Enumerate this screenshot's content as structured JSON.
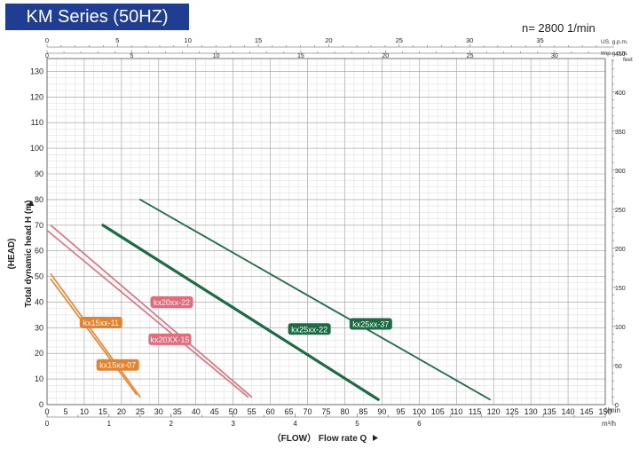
{
  "header": {
    "title": "KM Series (50HZ)",
    "speed": "n= 2800  1/min"
  },
  "colors": {
    "title_bg": "#1f3d93",
    "orange": "#e8822a",
    "pink": "#e26b7c",
    "green": "#1b6b43",
    "grid": "#bdbdbd"
  },
  "chart_data": {
    "type": "line",
    "title": "",
    "xlabel": "（FLOW）  Flow rate Q",
    "ylabel": "Total dynamic head H (m)",
    "ylabel_group": "(HEAD)",
    "x_unit": "l/min",
    "x2_unit": "m³/h",
    "top_unit_1": "US. g.p.m.",
    "top_unit_2": "Imp.g.p.m.",
    "right_unit": "feet",
    "xlim": [
      0,
      150
    ],
    "ylim": [
      0,
      135
    ],
    "x_ticks": [
      "0",
      "5",
      "10",
      "15",
      "20",
      "25",
      "30",
      "35",
      "40",
      "45",
      "50",
      "55",
      "60",
      "65",
      "70",
      "75",
      "80",
      "85",
      "90",
      "95",
      "100",
      "105",
      "110",
      "115",
      "120",
      "125",
      "130",
      "135",
      "140",
      "145",
      "150"
    ],
    "y_ticks": [
      "0",
      "10",
      "20",
      "30",
      "40",
      "50",
      "60",
      "70",
      "80",
      "90",
      "100",
      "110",
      "120",
      "130"
    ],
    "m3h_ticks": [
      "0",
      "1",
      "2",
      "3",
      "4",
      "5",
      "6"
    ],
    "usgpm_ticks": [
      "0",
      "5",
      "10",
      "15",
      "20",
      "25",
      "30",
      "35",
      "40"
    ],
    "impgpm_ticks": [
      "0",
      "5",
      "10",
      "15",
      "20",
      "25",
      "30"
    ],
    "feet_ticks": [
      "0",
      "50",
      "100",
      "150",
      "200",
      "250",
      "300",
      "350",
      "400",
      "450"
    ],
    "grid": true,
    "series": [
      {
        "name": "kx15xx-07",
        "color": "#e8822a",
        "x": [
          1,
          24
        ],
        "y": [
          49,
          4
        ]
      },
      {
        "name": "kx15xx-11",
        "color": "#e8822a",
        "x": [
          1,
          25
        ],
        "y": [
          51,
          3
        ]
      },
      {
        "name": "kx20XX-15",
        "color": "#e26b7c",
        "x": [
          0,
          54
        ],
        "y": [
          68,
          3
        ]
      },
      {
        "name": "kx20xx-22",
        "color": "#e26b7c",
        "x": [
          1,
          55
        ],
        "y": [
          70,
          3
        ]
      },
      {
        "name": "kx25xx-22",
        "color": "#1b6b43",
        "x": [
          15,
          89
        ],
        "y": [
          70,
          2
        ]
      },
      {
        "name": "kx25xx-37",
        "color": "#1b6b43",
        "x": [
          25,
          119
        ],
        "y": [
          80,
          2
        ]
      }
    ]
  }
}
